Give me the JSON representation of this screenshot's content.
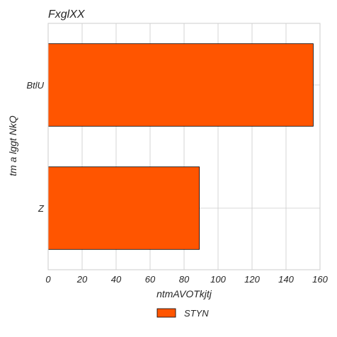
{
  "chart_data": {
    "type": "bar",
    "orientation": "horizontal",
    "title": "FxglXX",
    "xlabel": "ntmAVOTkjtj",
    "ylabel": "tm a lggt NkQ",
    "categories": [
      "BtlU",
      "Z"
    ],
    "series": [
      {
        "name": "STYN",
        "values": [
          156,
          89
        ],
        "color": "#ff5500"
      }
    ],
    "xlim": [
      0,
      160
    ],
    "xticks": [
      0,
      20,
      40,
      60,
      80,
      100,
      120,
      140,
      160
    ],
    "xtick_labels": [
      "0",
      "20",
      "40",
      "60",
      "80",
      "100",
      "120",
      "140",
      "160"
    ],
    "grid": true,
    "legend_position": "bottom-center"
  }
}
